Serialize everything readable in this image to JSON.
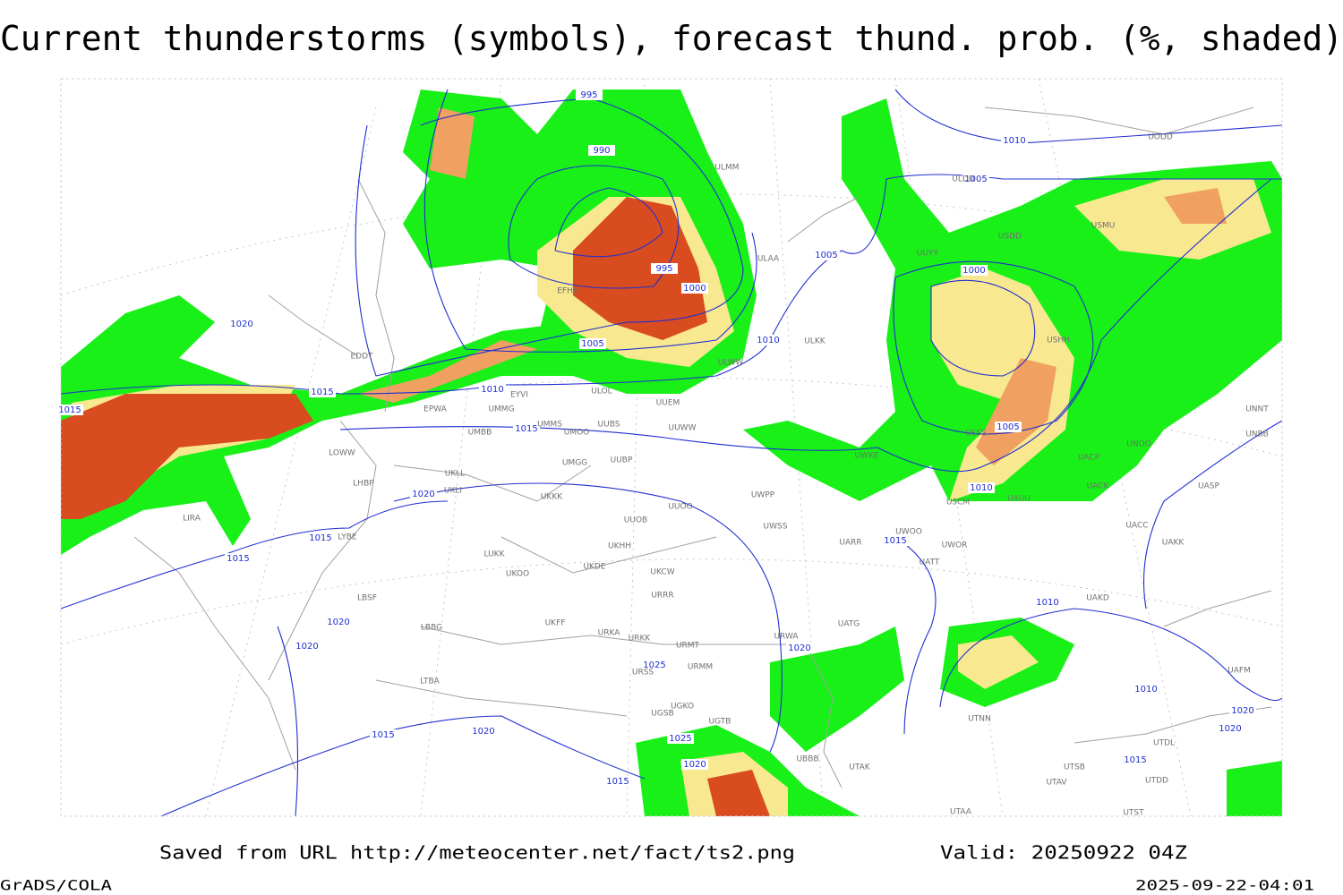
{
  "title": "Current thunderstorms (symbols), forecast thund. prob. (%, shaded)",
  "footer": {
    "source": "Saved from URL http://meteocenter.net/fact/ts2.png",
    "valid": "Valid: 20250922 04Z",
    "software": "GrADS/COLA",
    "timestamp": "2025-09-22-04:01"
  },
  "isobar_labels": [
    995,
    990,
    995,
    1000,
    1005,
    1010,
    1015,
    1020,
    1015,
    1015,
    1020,
    1015,
    1015,
    1020,
    1020,
    1025,
    1025,
    1020,
    1015,
    1020,
    1015,
    1010,
    1005,
    1010,
    1005,
    1000,
    1005,
    1010,
    1015,
    1010,
    1010,
    1020,
    1020,
    1015,
    1020
  ],
  "stations": [
    "EFHK",
    "EDDT",
    "EPWA",
    "EYVI",
    "UMMG",
    "ULOL",
    "UMBB",
    "UMMS",
    "UMOO",
    "UUBS",
    "ULWW",
    "UUEM",
    "UUWW",
    "LOWW",
    "LHBP",
    "UKLL",
    "UKLI",
    "UKKK",
    "UMGG",
    "UUBP",
    "UUOO",
    "UUOB",
    "LIRA",
    "LYBE",
    "LUKK",
    "UKHH",
    "UKOO",
    "UKDE",
    "UKCW",
    "UKFF",
    "URRR",
    "URKA",
    "URKK",
    "URMT",
    "URMM",
    "URSS",
    "LBBG",
    "LBSF",
    "LTBA",
    "UGKO",
    "UGSB",
    "UGTB",
    "UBBB",
    "UTAK",
    "UWPP",
    "UWSS",
    "UARR",
    "UATT",
    "UATG",
    "URWA",
    "UACC",
    "UAKK",
    "UASP",
    "UACK",
    "UACP",
    "UAKD",
    "UNOO",
    "UNNT",
    "UNBB",
    "USSS",
    "USCM",
    "UAUU",
    "UWOO",
    "UWOR",
    "USHH",
    "USDD",
    "USMU",
    "ULDD",
    "UODD",
    "UUYY",
    "UWKE",
    "ULKK",
    "ULMM",
    "ULAA",
    "UTAA",
    "UTAV",
    "UTSB",
    "UTNN",
    "UTDD",
    "UTST",
    "UTDL",
    "UAFM"
  ]
}
